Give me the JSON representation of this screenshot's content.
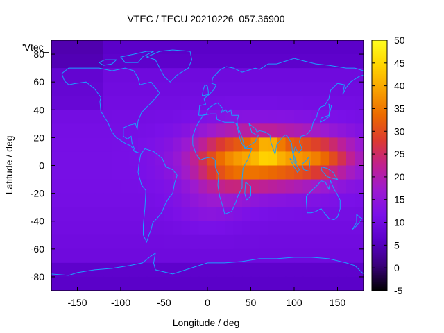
{
  "chart_data": {
    "type": "heatmap",
    "title": "VTEC / TECU 20210226_057.36900",
    "xlabel": "Longitude / deg",
    "ylabel": "Latitude / deg",
    "key_label": "'Vtec_",
    "xlim": [
      -180,
      180
    ],
    "ylim": [
      -90,
      90
    ],
    "x_ticks": [
      -150,
      -100,
      -50,
      0,
      50,
      100,
      150
    ],
    "y_ticks": [
      -80,
      -60,
      -40,
      -20,
      0,
      20,
      40,
      60,
      80
    ],
    "colorbar": {
      "range": [
        -5,
        50
      ],
      "ticks": [
        -5,
        0,
        5,
        10,
        15,
        20,
        25,
        30,
        35,
        40,
        45,
        50
      ],
      "palette": [
        "#000000",
        "#3a007a",
        "#5a00c8",
        "#7a10e8",
        "#9c1ad0",
        "#c02090",
        "#dc3a30",
        "#ec6a00",
        "#f8a000",
        "#ffd400",
        "#ffff20"
      ]
    },
    "field_grid": {
      "lon_step": 10,
      "lat_step": 10,
      "lat_centers": [
        -85,
        -75,
        -65,
        -55,
        -45,
        -35,
        -25,
        -15,
        -5,
        5,
        15,
        25,
        35,
        45,
        55,
        65,
        75,
        85
      ],
      "note_values": "rows from south to north, values in TECU"
    },
    "coastline_color": "#1aa0ff"
  }
}
